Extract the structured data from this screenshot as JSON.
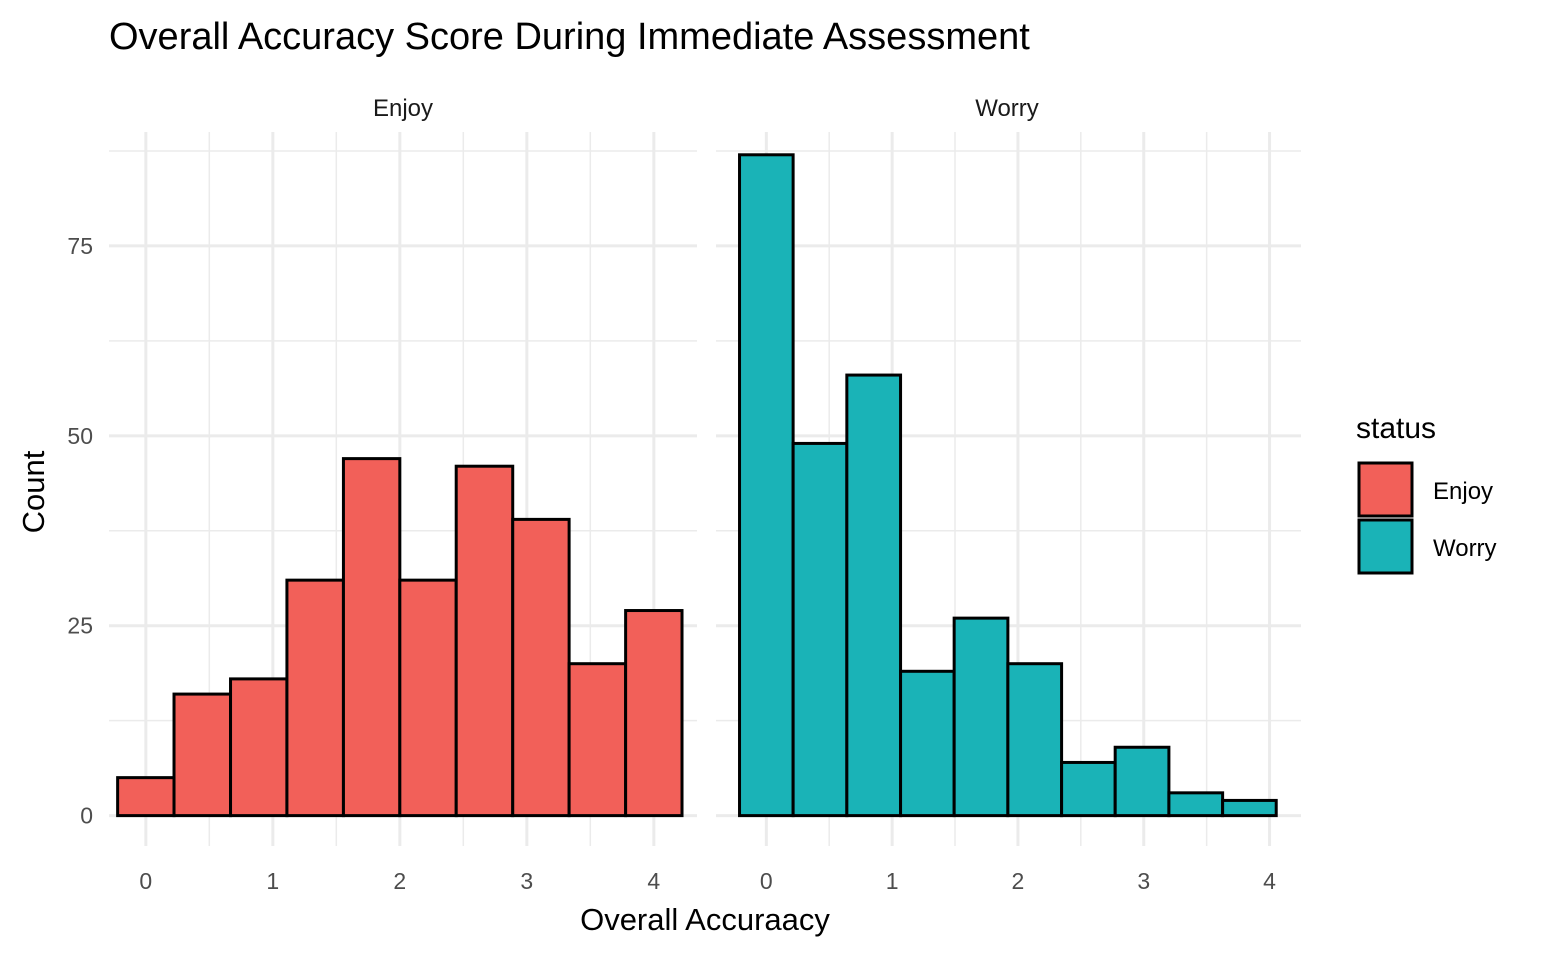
{
  "chart_data": {
    "type": "histogram",
    "title": "Overall Accuracy Score During Immediate Assessment",
    "xlabel": "Overall Accuraacy",
    "ylabel": "Count",
    "ylim": [
      -4,
      90
    ],
    "y_ticks": [
      0,
      25,
      50,
      75
    ],
    "y_tick_labels": [
      "0",
      "25",
      "50",
      "75"
    ],
    "grid": true,
    "legend": {
      "title": "status",
      "position": "right",
      "items": [
        {
          "label": "Enjoy",
          "color": "#F26059"
        },
        {
          "label": "Worry",
          "color": "#1AB3B7"
        }
      ]
    },
    "facets": [
      {
        "name": "Enjoy",
        "color": "#F26059",
        "xlim": [
          -0.29,
          4.34
        ],
        "x_ticks": [
          0,
          1,
          2,
          3,
          4
        ],
        "x_tick_labels": [
          "0",
          "1",
          "2",
          "3",
          "4"
        ],
        "bins": [
          {
            "x0": -0.222,
            "x1": 0.222,
            "count": 5
          },
          {
            "x0": 0.222,
            "x1": 0.667,
            "count": 16
          },
          {
            "x0": 0.667,
            "x1": 1.111,
            "count": 18
          },
          {
            "x0": 1.111,
            "x1": 1.556,
            "count": 31
          },
          {
            "x0": 1.556,
            "x1": 2.0,
            "count": 47
          },
          {
            "x0": 2.0,
            "x1": 2.444,
            "count": 31
          },
          {
            "x0": 2.444,
            "x1": 2.889,
            "count": 46
          },
          {
            "x0": 2.889,
            "x1": 3.333,
            "count": 39
          },
          {
            "x0": 3.333,
            "x1": 3.778,
            "count": 20
          },
          {
            "x0": 3.778,
            "x1": 4.222,
            "count": 27
          }
        ]
      },
      {
        "name": "Worry",
        "color": "#1AB3B7",
        "xlim": [
          -0.4,
          4.25
        ],
        "x_ticks": [
          0,
          1,
          2,
          3,
          4
        ],
        "x_tick_labels": [
          "0",
          "1",
          "2",
          "3",
          "4"
        ],
        "bins": [
          {
            "x0": -0.213,
            "x1": 0.213,
            "count": 87
          },
          {
            "x0": 0.213,
            "x1": 0.64,
            "count": 49
          },
          {
            "x0": 0.64,
            "x1": 1.067,
            "count": 58
          },
          {
            "x0": 1.067,
            "x1": 1.493,
            "count": 19
          },
          {
            "x0": 1.493,
            "x1": 1.92,
            "count": 26
          },
          {
            "x0": 1.92,
            "x1": 2.347,
            "count": 20
          },
          {
            "x0": 2.347,
            "x1": 2.773,
            "count": 7
          },
          {
            "x0": 2.773,
            "x1": 3.2,
            "count": 9
          },
          {
            "x0": 3.2,
            "x1": 3.627,
            "count": 3
          },
          {
            "x0": 3.627,
            "x1": 4.053,
            "count": 2
          }
        ]
      }
    ]
  }
}
